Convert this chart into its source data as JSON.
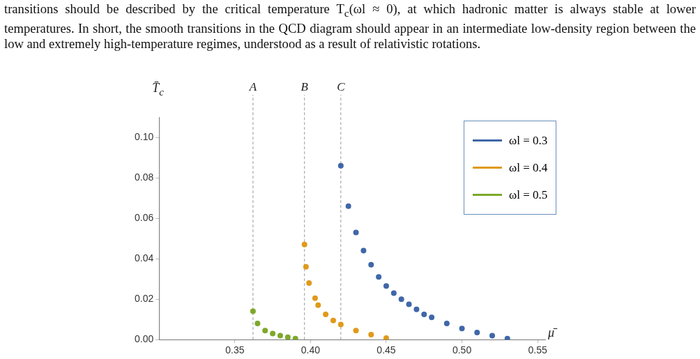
{
  "chart_data": {
    "type": "scatter",
    "annotations": [
      "transitions should be described by the critical temperature T$_{c}$(ωl ≈ 0), at which hadronic matter is always stable at lower temperatures. In short, the smooth transitions in the QCD diagram should appear in an intermediate low-density region between the low and extremely high-temperature regimes, understood as a result of relativistic rotations."
    ],
    "xlabel": "μ̄",
    "ylabel": "T̄$_{c}$",
    "series": [
      {
        "name": "ωl = 0.3",
        "color": "#3f67a8",
        "x": [
          0.42,
          0.425,
          0.43,
          0.435,
          0.44,
          0.445,
          0.45,
          0.455,
          0.46,
          0.465,
          0.47,
          0.475,
          0.48,
          0.49,
          0.5,
          0.51,
          0.52,
          0.53
        ],
        "values": [
          0.086,
          0.066,
          0.053,
          0.044,
          0.037,
          0.031,
          0.0265,
          0.023,
          0.02,
          0.0175,
          0.015,
          0.0125,
          0.011,
          0.008,
          0.0055,
          0.0035,
          0.002,
          0.0005
        ]
      },
      {
        "name": "ωl = 0.4",
        "color": "#e09a1b",
        "x": [
          0.396,
          0.397,
          0.399,
          0.403,
          0.405,
          0.41,
          0.415,
          0.42,
          0.43,
          0.44,
          0.45
        ],
        "values": [
          0.047,
          0.036,
          0.028,
          0.0205,
          0.017,
          0.0125,
          0.0095,
          0.0075,
          0.0045,
          0.0025,
          0.0008
        ]
      },
      {
        "name": "ωl = 0.5",
        "color": "#7ea82b",
        "x": [
          0.362,
          0.365,
          0.37,
          0.375,
          0.38,
          0.385,
          0.39
        ],
        "values": [
          0.014,
          0.008,
          0.0045,
          0.003,
          0.002,
          0.0012,
          0.0005
        ]
      }
    ],
    "xlim": [
      0.3,
      0.555
    ],
    "xticks": [
      {
        "value": 0.35,
        "label": "0.35"
      },
      {
        "value": 0.4,
        "label": "0.40"
      },
      {
        "value": 0.45,
        "label": "0.45"
      },
      {
        "value": 0.5,
        "label": "0.50"
      },
      {
        "value": 0.55,
        "label": "0.55"
      }
    ],
    "ylim": [
      0,
      0.11
    ],
    "yticks": [
      {
        "value": 0,
        "label": "0.00"
      },
      {
        "value": 0.02,
        "label": "0.02"
      },
      {
        "value": 0.04,
        "label": "0.04"
      },
      {
        "value": 0.06,
        "label": "0.06"
      },
      {
        "value": 0.08,
        "label": "0.08"
      },
      {
        "value": 0.1,
        "label": "0.10"
      }
    ],
    "ref_lines": [
      {
        "axis": "x",
        "value": 0.362,
        "label": "A",
        "color": "#999999",
        "line_style": "dashed"
      },
      {
        "axis": "x",
        "value": 0.396,
        "label": "B",
        "color": "#999999",
        "line_style": "dashed"
      },
      {
        "axis": "x",
        "value": 0.42,
        "label": "C",
        "color": "#999999",
        "line_style": "dashed"
      }
    ],
    "legend": "top right",
    "marker": "circle",
    "grid": false
  }
}
